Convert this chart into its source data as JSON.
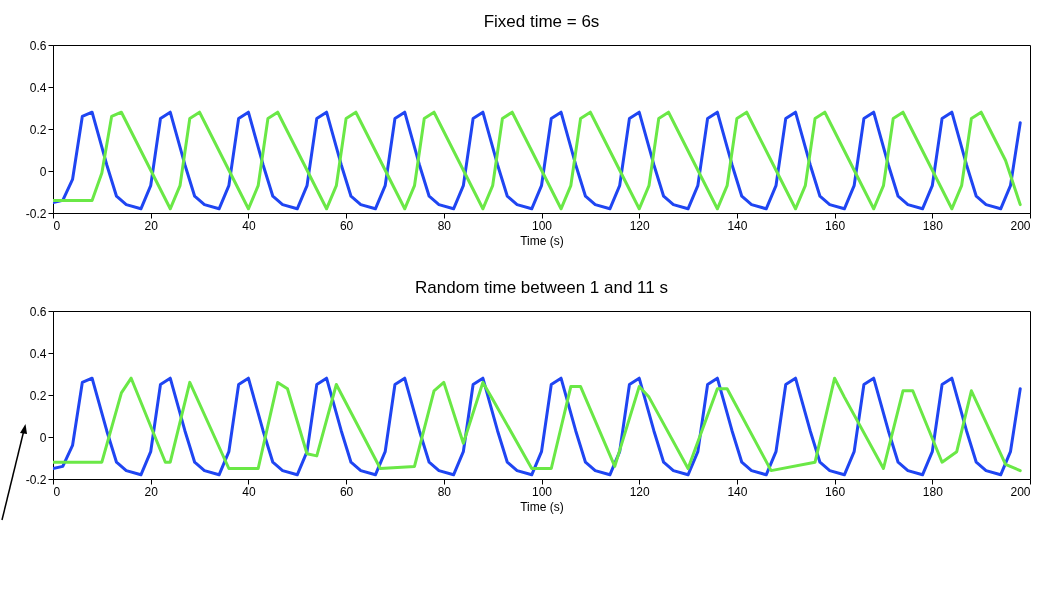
{
  "chart_data": [
    {
      "type": "line",
      "title": "Fixed time = 6s",
      "xlabel": "Time (s)",
      "xlim": [
        0,
        200
      ],
      "xticks": [
        0,
        20,
        40,
        60,
        80,
        100,
        120,
        140,
        160,
        180,
        200
      ],
      "ylim": [
        -0.2,
        0.6
      ],
      "yticks": [
        -0.2,
        0,
        0.2,
        0.4,
        0.6
      ],
      "series": [
        {
          "color": "#1f45f2",
          "x": [
            0,
            2,
            4,
            6,
            8,
            11,
            13,
            15,
            18,
            20,
            22,
            24,
            27,
            29,
            31,
            34,
            36,
            38,
            40,
            43,
            45,
            47,
            50,
            52,
            54,
            56,
            59,
            61,
            63,
            66,
            68,
            70,
            72,
            75,
            77,
            79,
            82,
            84,
            86,
            88,
            91,
            93,
            95,
            98,
            100,
            102,
            104,
            107,
            109,
            111,
            114,
            116,
            118,
            120,
            123,
            125,
            127,
            130,
            132,
            134,
            136,
            139,
            141,
            143,
            146,
            148,
            150,
            152,
            155,
            157,
            159,
            162,
            164,
            166,
            168,
            171,
            173,
            175,
            178,
            180,
            182,
            184,
            187,
            189,
            191,
            194,
            196,
            198
          ],
          "values": [
            -0.15,
            -0.14,
            -0.04,
            0.26,
            0.28,
            0.03,
            -0.12,
            -0.16,
            -0.18,
            -0.07,
            0.25,
            0.28,
            0.03,
            -0.12,
            -0.16,
            -0.18,
            -0.07,
            0.25,
            0.28,
            0.03,
            -0.12,
            -0.16,
            -0.18,
            -0.07,
            0.25,
            0.28,
            0.03,
            -0.12,
            -0.16,
            -0.18,
            -0.07,
            0.25,
            0.28,
            0.03,
            -0.12,
            -0.16,
            -0.18,
            -0.07,
            0.25,
            0.28,
            0.03,
            -0.12,
            -0.16,
            -0.18,
            -0.07,
            0.25,
            0.28,
            0.03,
            -0.12,
            -0.16,
            -0.18,
            -0.07,
            0.25,
            0.28,
            0.03,
            -0.12,
            -0.16,
            -0.18,
            -0.07,
            0.25,
            0.28,
            0.03,
            -0.12,
            -0.16,
            -0.18,
            -0.07,
            0.25,
            0.28,
            0.03,
            -0.12,
            -0.16,
            -0.18,
            -0.07,
            0.25,
            0.28,
            0.03,
            -0.12,
            -0.16,
            -0.18,
            -0.07,
            0.25,
            0.28,
            0.03,
            -0.12,
            -0.16,
            -0.18,
            -0.07,
            0.23
          ]
        },
        {
          "color": "#6ae846",
          "x": [
            0,
            8,
            10,
            12,
            14,
            19,
            24,
            26,
            28,
            30,
            35,
            40,
            42,
            44,
            46,
            51,
            56,
            58,
            60,
            62,
            67,
            72,
            74,
            76,
            78,
            83,
            88,
            90,
            92,
            94,
            99,
            104,
            106,
            108,
            110,
            115,
            120,
            122,
            124,
            126,
            131,
            136,
            138,
            140,
            142,
            147,
            152,
            154,
            156,
            158,
            163,
            168,
            170,
            172,
            174,
            179,
            184,
            186,
            188,
            190,
            195,
            198
          ],
          "values": [
            -0.14,
            -0.14,
            -0.01,
            0.26,
            0.28,
            0.05,
            -0.18,
            -0.07,
            0.25,
            0.28,
            0.05,
            -0.18,
            -0.07,
            0.25,
            0.28,
            0.05,
            -0.18,
            -0.07,
            0.25,
            0.28,
            0.05,
            -0.18,
            -0.07,
            0.25,
            0.28,
            0.05,
            -0.18,
            -0.07,
            0.25,
            0.28,
            0.05,
            -0.18,
            -0.07,
            0.25,
            0.28,
            0.05,
            -0.18,
            -0.07,
            0.25,
            0.28,
            0.05,
            -0.18,
            -0.07,
            0.25,
            0.28,
            0.05,
            -0.18,
            -0.07,
            0.25,
            0.28,
            0.05,
            -0.18,
            -0.07,
            0.25,
            0.28,
            0.05,
            -0.18,
            -0.07,
            0.25,
            0.28,
            0.05,
            -0.16
          ]
        }
      ]
    },
    {
      "type": "line",
      "title": "Random time between 1 and 11 s",
      "xlabel": "Time (s)",
      "xlim": [
        0,
        200
      ],
      "xticks": [
        0,
        20,
        40,
        60,
        80,
        100,
        120,
        140,
        160,
        180,
        200
      ],
      "ylim": [
        -0.2,
        0.6
      ],
      "yticks": [
        -0.2,
        0,
        0.2,
        0.4,
        0.6
      ],
      "series": [
        {
          "color": "#1f45f2",
          "x": [
            0,
            2,
            4,
            6,
            8,
            11,
            13,
            15,
            18,
            20,
            22,
            24,
            27,
            29,
            31,
            34,
            36,
            38,
            40,
            43,
            45,
            47,
            50,
            52,
            54,
            56,
            59,
            61,
            63,
            66,
            68,
            70,
            72,
            75,
            77,
            79,
            82,
            84,
            86,
            88,
            91,
            93,
            95,
            98,
            100,
            102,
            104,
            107,
            109,
            111,
            114,
            116,
            118,
            120,
            123,
            125,
            127,
            130,
            132,
            134,
            136,
            139,
            141,
            143,
            146,
            148,
            150,
            152,
            155,
            157,
            159,
            162,
            164,
            166,
            168,
            171,
            173,
            175,
            178,
            180,
            182,
            184,
            187,
            189,
            191,
            194,
            196,
            198
          ],
          "values": [
            -0.15,
            -0.14,
            -0.04,
            0.26,
            0.28,
            0.03,
            -0.12,
            -0.16,
            -0.18,
            -0.07,
            0.25,
            0.28,
            0.03,
            -0.12,
            -0.16,
            -0.18,
            -0.07,
            0.25,
            0.28,
            0.03,
            -0.12,
            -0.16,
            -0.18,
            -0.07,
            0.25,
            0.28,
            0.03,
            -0.12,
            -0.16,
            -0.18,
            -0.07,
            0.25,
            0.28,
            0.03,
            -0.12,
            -0.16,
            -0.18,
            -0.07,
            0.25,
            0.28,
            0.03,
            -0.12,
            -0.16,
            -0.18,
            -0.07,
            0.25,
            0.28,
            0.03,
            -0.12,
            -0.16,
            -0.18,
            -0.07,
            0.25,
            0.28,
            0.03,
            -0.12,
            -0.16,
            -0.18,
            -0.07,
            0.25,
            0.28,
            0.03,
            -0.12,
            -0.16,
            -0.18,
            -0.07,
            0.25,
            0.28,
            0.03,
            -0.12,
            -0.16,
            -0.18,
            -0.07,
            0.25,
            0.28,
            0.03,
            -0.12,
            -0.16,
            -0.18,
            -0.07,
            0.25,
            0.28,
            0.03,
            -0.12,
            -0.16,
            -0.18,
            -0.07,
            0.23
          ]
        },
        {
          "color": "#6ae846",
          "x": [
            0,
            10,
            14,
            16,
            23,
            24,
            28,
            36,
            42,
            46,
            48,
            52,
            54,
            58,
            67,
            74,
            78,
            80,
            84,
            88,
            90,
            98,
            102,
            106,
            108,
            115,
            120,
            122,
            130,
            136,
            138,
            147,
            156,
            160,
            162,
            170,
            174,
            176,
            182,
            185,
            188,
            195,
            198
          ],
          "values": [
            -0.12,
            -0.12,
            0.21,
            0.28,
            -0.12,
            -0.12,
            0.26,
            -0.15,
            -0.15,
            0.26,
            0.23,
            -0.08,
            -0.09,
            0.25,
            -0.15,
            -0.14,
            0.22,
            0.26,
            -0.03,
            0.26,
            0.18,
            -0.15,
            -0.15,
            0.24,
            0.24,
            -0.14,
            0.24,
            0.19,
            -0.15,
            0.23,
            0.23,
            -0.16,
            -0.12,
            0.28,
            0.19,
            -0.15,
            0.22,
            0.22,
            -0.12,
            -0.07,
            0.22,
            -0.13,
            -0.16
          ]
        }
      ]
    }
  ]
}
